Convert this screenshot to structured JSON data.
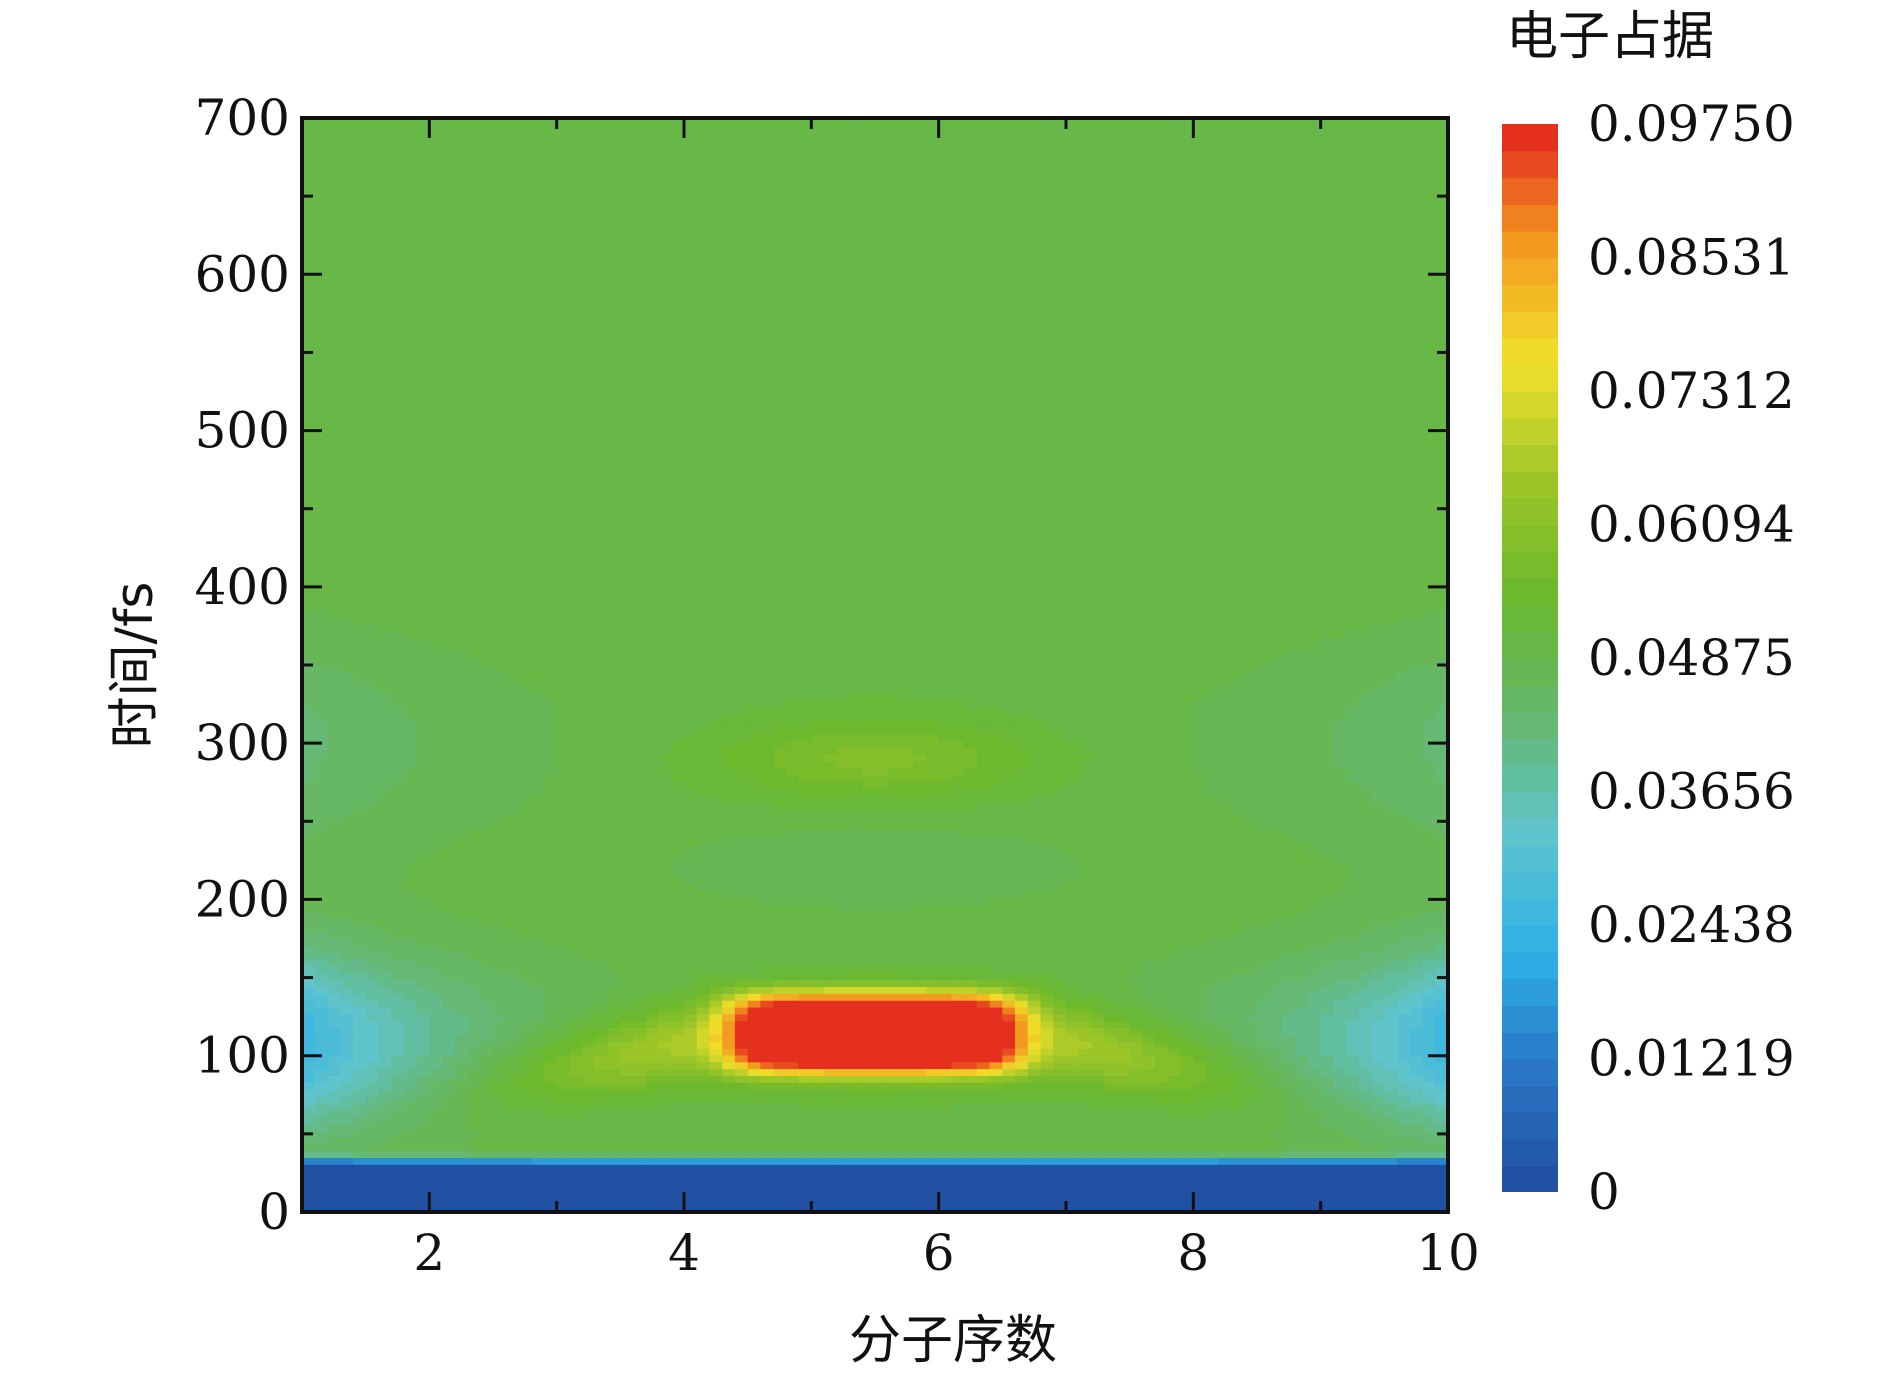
{
  "chart_data": {
    "type": "heatmap",
    "xlabel": "分子序数",
    "ylabel": "时间/fs",
    "xlim": [
      1,
      10
    ],
    "ylim": [
      0,
      700
    ],
    "x_ticks": [
      2,
      4,
      6,
      8,
      10
    ],
    "y_ticks": [
      0,
      100,
      200,
      300,
      400,
      500,
      600,
      700
    ],
    "colorbar": {
      "title": "电子占据",
      "range": [
        0,
        0.0975
      ],
      "tick_values": [
        0,
        0.01219,
        0.02438,
        0.03656,
        0.04875,
        0.06094,
        0.07312,
        0.08531,
        0.0975
      ],
      "tick_labels": [
        "0",
        "0.01219",
        "0.02438",
        "0.03656",
        "0.04875",
        "0.06094",
        "0.07312",
        "0.08531",
        "0.09750"
      ],
      "levels": 40,
      "colors": [
        "#1f4c9e",
        "#2a74c4",
        "#2eb0e6",
        "#5fc4cf",
        "#66b86e",
        "#69b82e",
        "#9ec628",
        "#f0e12a",
        "#f39a1f",
        "#e3231f"
      ]
    },
    "features": [
      {
        "x": 5.5,
        "y": 115,
        "value": 0.0975
      },
      {
        "x": 1,
        "y": 90,
        "value": 0.0244
      },
      {
        "x": 10,
        "y": 90,
        "value": 0.0244
      },
      {
        "x": 5.5,
        "y": 290,
        "value": 0.058
      },
      {
        "x": 5.5,
        "y": 15,
        "value": 0.0
      }
    ]
  }
}
